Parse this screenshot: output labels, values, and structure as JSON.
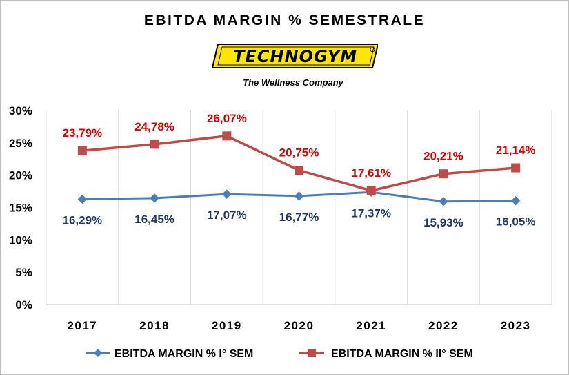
{
  "chart_data": {
    "type": "line",
    "title": "EBITDA MARGIN % SEMESTRALE",
    "logo_text": "TECHNOGYM",
    "tagline": "The Wellness Company",
    "x": [
      "2017",
      "2018",
      "2019",
      "2020",
      "2021",
      "2022",
      "2023"
    ],
    "yticks": [
      "0%",
      "5%",
      "10%",
      "15%",
      "20%",
      "25%",
      "30%"
    ],
    "ylim": [
      0,
      30
    ],
    "grid": "vertical",
    "legend_position": "bottom",
    "series": [
      {
        "name": "EBITDA MARGIN % I° SEM",
        "values": [
          16.29,
          16.45,
          17.07,
          16.77,
          17.37,
          15.93,
          16.05
        ],
        "labels": [
          "16,29%",
          "16,45%",
          "17,07%",
          "16,77%",
          "17,37%",
          "15,93%",
          "16,05%"
        ],
        "color": "#4a7ebb",
        "label_color": "#1f3864",
        "marker": "diamond"
      },
      {
        "name": "EBITDA MARGIN % II° SEM",
        "values": [
          23.79,
          24.78,
          26.07,
          20.75,
          17.61,
          20.21,
          21.14
        ],
        "labels": [
          "23,79%",
          "24,78%",
          "26,07%",
          "20,75%",
          "17,61%",
          "20,21%",
          "21,14%"
        ],
        "color": "#be4b48",
        "label_color": "#e00000",
        "marker": "square"
      }
    ]
  },
  "colors": {
    "logo_yellow": "#ffe600",
    "logo_black": "#000000",
    "grid": "#d9d9d9"
  }
}
